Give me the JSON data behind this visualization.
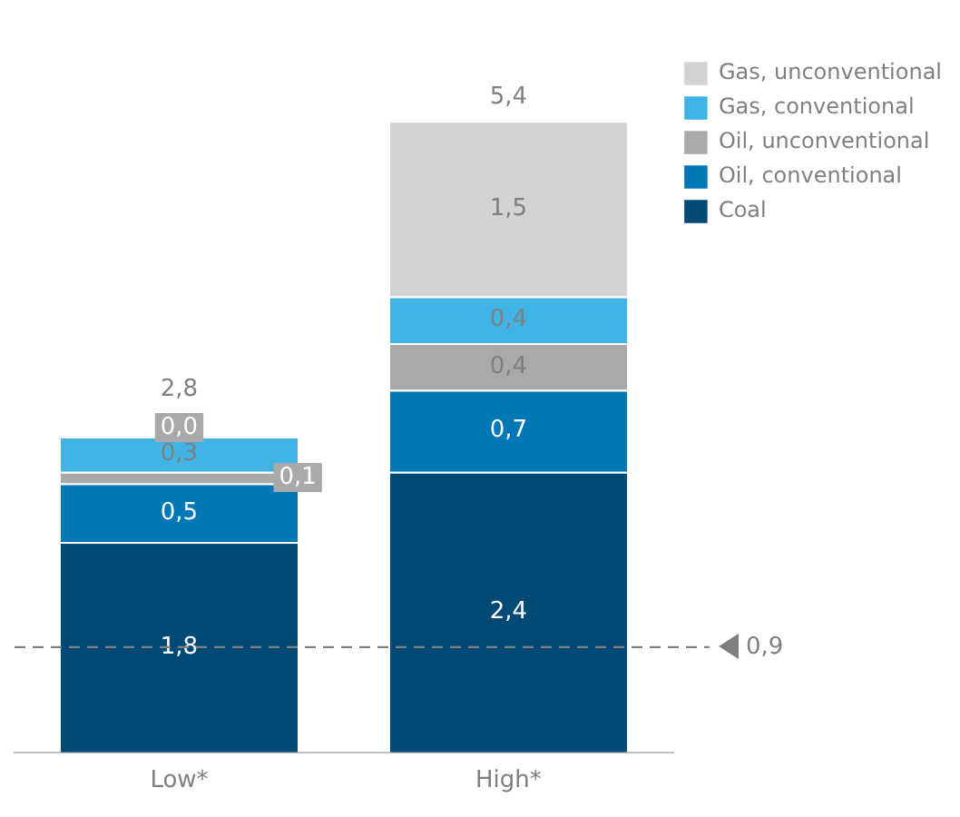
{
  "chart_data": {
    "type": "bar",
    "stacked": true,
    "categories": [
      "Low*",
      "High*"
    ],
    "series": [
      {
        "name": "Coal",
        "color": "#004a75",
        "values": [
          1.8,
          2.4
        ],
        "value_labels": [
          "1,8",
          "2,4"
        ]
      },
      {
        "name": "Oil, conventional",
        "color": "#0078b8",
        "values": [
          0.5,
          0.7
        ],
        "value_labels": [
          "0,5",
          "0,7"
        ]
      },
      {
        "name": "Oil, unconventional",
        "color": "#a9a9a9",
        "values": [
          0.1,
          0.4
        ],
        "value_labels": [
          "0,1",
          "0,4"
        ]
      },
      {
        "name": "Gas, conventional",
        "color": "#41b4e6",
        "values": [
          0.3,
          0.4
        ],
        "value_labels": [
          "0,3",
          "0,4"
        ]
      },
      {
        "name": "Gas, unconventional",
        "color": "#d3d3d3",
        "values": [
          0.0,
          1.5
        ],
        "value_labels": [
          "0,0",
          "1,5"
        ]
      }
    ],
    "totals": [
      "2,8",
      "5,4"
    ],
    "ref_lines": [
      {
        "axis": "y",
        "value": 0.9,
        "label": "0,9",
        "color": "#7f7f7f",
        "line_style": "dashed"
      }
    ],
    "legend": "top right",
    "grid": false
  }
}
